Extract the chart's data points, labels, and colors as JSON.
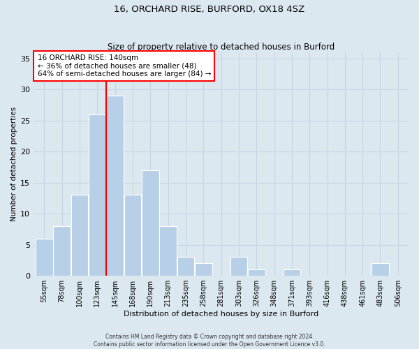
{
  "title1": "16, ORCHARD RISE, BURFORD, OX18 4SZ",
  "title2": "Size of property relative to detached houses in Burford",
  "xlabel": "Distribution of detached houses by size in Burford",
  "ylabel": "Number of detached properties",
  "footnote1": "Contains HM Land Registry data © Crown copyright and database right 2024.",
  "footnote2": "Contains public sector information licensed under the Open Government Licence v3.0.",
  "bin_labels": [
    "55sqm",
    "78sqm",
    "100sqm",
    "123sqm",
    "145sqm",
    "168sqm",
    "190sqm",
    "213sqm",
    "235sqm",
    "258sqm",
    "281sqm",
    "303sqm",
    "326sqm",
    "348sqm",
    "371sqm",
    "393sqm",
    "416sqm",
    "438sqm",
    "461sqm",
    "483sqm",
    "506sqm"
  ],
  "bar_values": [
    6,
    8,
    13,
    26,
    29,
    13,
    17,
    8,
    3,
    2,
    0,
    3,
    1,
    0,
    1,
    0,
    0,
    0,
    0,
    2,
    0
  ],
  "bar_color": "#b8cfe8",
  "bar_edge_color": "white",
  "bar_width": 0.97,
  "vline_x": 4.0,
  "vline_color": "red",
  "annotation_text": "16 ORCHARD RISE: 140sqm\n← 36% of detached houses are smaller (48)\n64% of semi-detached houses are larger (84) →",
  "annotation_box_facecolor": "white",
  "annotation_box_edgecolor": "red",
  "ylim": [
    0,
    36
  ],
  "yticks": [
    0,
    5,
    10,
    15,
    20,
    25,
    30,
    35
  ],
  "grid_color": "#c8d4e4",
  "background_color": "#dce8f0",
  "title1_fontsize": 9.5,
  "title2_fontsize": 8.5,
  "xlabel_fontsize": 8,
  "ylabel_fontsize": 7.5,
  "tick_fontsize": 7,
  "annotation_fontsize": 7.5,
  "footnote_fontsize": 5.5
}
